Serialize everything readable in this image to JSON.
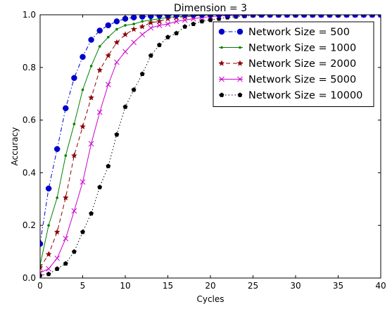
{
  "chart_data": {
    "type": "line",
    "title": "Dimension = 3",
    "xlabel": "Cycles",
    "ylabel": "Accuracy",
    "xlim": [
      0,
      40
    ],
    "ylim": [
      0.0,
      1.0
    ],
    "x_ticks": [
      0,
      5,
      10,
      15,
      20,
      25,
      30,
      35,
      40
    ],
    "y_ticks": [
      "0.0",
      "0.2",
      "0.4",
      "0.6",
      "0.8",
      "1.0"
    ],
    "grid": false,
    "legend_position": "top-right",
    "x": [
      0,
      1,
      2,
      3,
      4,
      5,
      6,
      7,
      8,
      9,
      10,
      11,
      12,
      13,
      14,
      15,
      16,
      17,
      18,
      19,
      20,
      21,
      22,
      23,
      24,
      25,
      26,
      27,
      28,
      29,
      30,
      31,
      32,
      33,
      34,
      35,
      36,
      37,
      38,
      39,
      40
    ],
    "series": [
      {
        "name": "Network Size = 500",
        "color": "#0000cc",
        "marker": "circle",
        "line": "dashdot",
        "values": [
          0.13,
          0.34,
          0.49,
          0.645,
          0.76,
          0.84,
          0.905,
          0.94,
          0.96,
          0.975,
          0.985,
          0.99,
          0.993,
          0.995,
          0.997,
          0.998,
          0.999,
          1.0,
          1.0,
          1.0,
          1.0,
          1.0,
          1.0,
          1.0,
          1.0,
          1.0,
          1.0,
          1.0,
          1.0,
          1.0,
          1.0,
          1.0,
          1.0,
          1.0,
          1.0,
          1.0,
          1.0,
          1.0,
          1.0,
          1.0,
          1.0
        ]
      },
      {
        "name": "Network Size = 1000",
        "color": "#008000",
        "marker": "dot",
        "line": "solid",
        "values": [
          0.05,
          0.2,
          0.305,
          0.465,
          0.585,
          0.715,
          0.805,
          0.88,
          0.915,
          0.945,
          0.96,
          0.965,
          0.975,
          0.98,
          0.985,
          0.99,
          0.993,
          0.995,
          0.997,
          0.998,
          0.999,
          1.0,
          1.0,
          1.0,
          1.0,
          1.0,
          1.0,
          1.0,
          1.0,
          1.0,
          1.0,
          1.0,
          1.0,
          1.0,
          1.0,
          1.0,
          1.0,
          1.0,
          1.0,
          1.0,
          1.0
        ]
      },
      {
        "name": "Network Size = 2000",
        "color": "#8b0000",
        "marker": "star",
        "line": "dashed",
        "values": [
          0.04,
          0.09,
          0.175,
          0.305,
          0.465,
          0.575,
          0.685,
          0.79,
          0.845,
          0.895,
          0.925,
          0.945,
          0.955,
          0.97,
          0.975,
          0.985,
          0.99,
          0.993,
          0.995,
          0.997,
          0.998,
          0.999,
          1.0,
          1.0,
          1.0,
          1.0,
          1.0,
          1.0,
          1.0,
          1.0,
          1.0,
          1.0,
          1.0,
          1.0,
          1.0,
          1.0,
          1.0,
          1.0,
          1.0,
          1.0,
          1.0
        ]
      },
      {
        "name": "Network Size = 5000",
        "color": "#cc00cc",
        "marker": "x",
        "line": "solid",
        "values": [
          0.02,
          0.035,
          0.075,
          0.15,
          0.255,
          0.365,
          0.51,
          0.63,
          0.735,
          0.82,
          0.86,
          0.895,
          0.925,
          0.95,
          0.96,
          0.965,
          0.975,
          0.98,
          0.985,
          0.99,
          0.993,
          0.995,
          0.997,
          0.998,
          0.999,
          1.0,
          1.0,
          1.0,
          1.0,
          1.0,
          1.0,
          1.0,
          1.0,
          1.0,
          1.0,
          1.0,
          1.0,
          1.0,
          1.0,
          1.0,
          1.0
        ]
      },
      {
        "name": "Network Size = 10000",
        "color": "#000000",
        "marker": "pentagon",
        "line": "dotted",
        "values": [
          0.01,
          0.015,
          0.035,
          0.055,
          0.1,
          0.175,
          0.245,
          0.345,
          0.425,
          0.545,
          0.65,
          0.715,
          0.775,
          0.845,
          0.885,
          0.915,
          0.93,
          0.955,
          0.965,
          0.975,
          0.98,
          0.985,
          0.99,
          0.993,
          0.995,
          0.997,
          0.998,
          0.999,
          1.0,
          1.0,
          1.0,
          1.0,
          1.0,
          1.0,
          1.0,
          1.0,
          1.0,
          1.0,
          1.0,
          1.0,
          1.0
        ]
      }
    ]
  }
}
